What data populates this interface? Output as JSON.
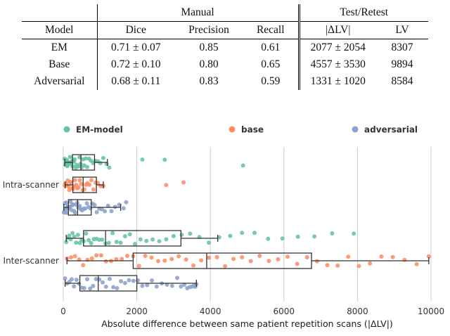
{
  "table": {
    "col_groups": {
      "manual": "Manual",
      "test_retest": "Test/Retest"
    },
    "headers": {
      "model": "Model",
      "dice": "Dice",
      "precision": "Precision",
      "recall": "Recall",
      "dlv": "|ΔLV|",
      "lv": "LV"
    },
    "rows": [
      {
        "model": "EM",
        "dice": "0.71 ± 0.07",
        "precision": "0.85",
        "recall": "0.61",
        "dlv": "2077 ± 2054",
        "lv": "8307"
      },
      {
        "model": "Base",
        "dice": "0.72 ± 0.10",
        "precision": "0.80",
        "recall": "0.65",
        "dlv": "4557 ± 3530",
        "lv": "9894"
      },
      {
        "model": "Adversarial",
        "dice": "0.68 ± 0.11",
        "precision": "0.83",
        "recall": "0.59",
        "dlv": "1331 ± 1020",
        "lv": "8584"
      }
    ]
  },
  "chart_data": {
    "type": "boxplot",
    "title": "",
    "xlabel": "Absolute difference between same patient repetition scans (|ΔLV|)",
    "ylabel": "",
    "xlim": [
      0,
      10000
    ],
    "xticks": [
      0,
      2000,
      4000,
      6000,
      8000,
      10000
    ],
    "grid": "vertical",
    "legend_position": "top",
    "series": [
      {
        "name": "EM-model",
        "color": "#66c2a5"
      },
      {
        "name": "base",
        "color": "#fc8d62"
      },
      {
        "name": "adversarial",
        "color": "#8da0cb"
      }
    ],
    "groups": [
      {
        "label": "Intra-scanner",
        "data": [
          {
            "series": "EM-model",
            "box": {
              "low": 40,
              "q1": 250,
              "median": 480,
              "q3": 850,
              "high": 1200
            },
            "points": [
              35,
              55,
              70,
              85,
              95,
              110,
              125,
              140,
              155,
              170,
              185,
              200,
              215,
              230,
              250,
              270,
              290,
              310,
              335,
              360,
              385,
              410,
              440,
              470,
              500,
              535,
              570,
              610,
              650,
              700,
              750,
              810,
              870,
              940,
              1010,
              1090,
              1180,
              1250,
              2150,
              2760,
              4890
            ]
          },
          {
            "series": "base",
            "box": {
              "low": 50,
              "q1": 260,
              "median": 540,
              "q3": 900,
              "high": 1090
            },
            "points": [
              40,
              60,
              80,
              100,
              120,
              140,
              165,
              190,
              215,
              240,
              265,
              290,
              320,
              350,
              380,
              415,
              450,
              490,
              530,
              570,
              615,
              660,
              710,
              765,
              820,
              880,
              945,
              1015,
              1090,
              2800,
              3270
            ]
          },
          {
            "series": "adversarial",
            "box": {
              "low": 15,
              "q1": 140,
              "median": 390,
              "q3": 760,
              "high": 1560
            },
            "points": [
              15,
              30,
              45,
              60,
              75,
              90,
              105,
              120,
              140,
              160,
              180,
              200,
              220,
              245,
              270,
              295,
              320,
              350,
              380,
              410,
              445,
              480,
              515,
              555,
              595,
              640,
              685,
              735,
              790,
              850,
              910,
              980,
              1050,
              1130,
              1220,
              1310,
              1410,
              1520,
              1640,
              1710
            ]
          }
        ]
      },
      {
        "label": "Inter-scanner",
        "data": [
          {
            "series": "EM-model",
            "box": {
              "low": 80,
              "q1": 550,
              "median": 1150,
              "q3": 3200,
              "high": 4200
            },
            "points": [
              80,
              120,
              160,
              200,
              250,
              300,
              350,
              400,
              450,
              500,
              560,
              620,
              690,
              760,
              830,
              900,
              980,
              1060,
              1150,
              1240,
              1340,
              1450,
              1560,
              1680,
              1810,
              1950,
              2100,
              2260,
              2430,
              2610,
              2800,
              3000,
              3220,
              3450,
              3700,
              3960,
              4240,
              4540,
              4860,
              5200,
              5570,
              5960,
              6380,
              6830,
              7310,
              7900
            ]
          },
          {
            "series": "base",
            "box": {
              "low": 100,
              "q1": 1900,
              "median": 3900,
              "q3": 6750,
              "high": 9940
            },
            "points": [
              100,
              210,
              320,
              430,
              540,
              660,
              780,
              900,
              1030,
              1160,
              1300,
              1440,
              1590,
              1740,
              1900,
              2060,
              2230,
              2400,
              2580,
              2760,
              2950,
              3140,
              3340,
              3540,
              3750,
              3960,
              4180,
              4400,
              4630,
              4860,
              5100,
              5340,
              5590,
              5840,
              6100,
              6360,
              6630,
              6900,
              7180,
              7460,
              7750,
              8040,
              8340,
              8650,
              8960,
              9280,
              9610,
              9940
            ]
          },
          {
            "series": "adversarial",
            "box": {
              "low": 50,
              "q1": 450,
              "median": 950,
              "q3": 2000,
              "high": 3620
            },
            "points": [
              50,
              110,
              170,
              230,
              290,
              360,
              430,
              500,
              570,
              650,
              730,
              810,
              890,
              980,
              1070,
              1160,
              1260,
              1360,
              1460,
              1570,
              1680,
              1790,
              1910,
              2030,
              2150,
              2280,
              2410,
              2540,
              2680,
              2820,
              2960,
              3100,
              3200,
              3290,
              3370,
              3440,
              3500,
              3550,
              3590,
              3620
            ]
          }
        ]
      }
    ]
  }
}
